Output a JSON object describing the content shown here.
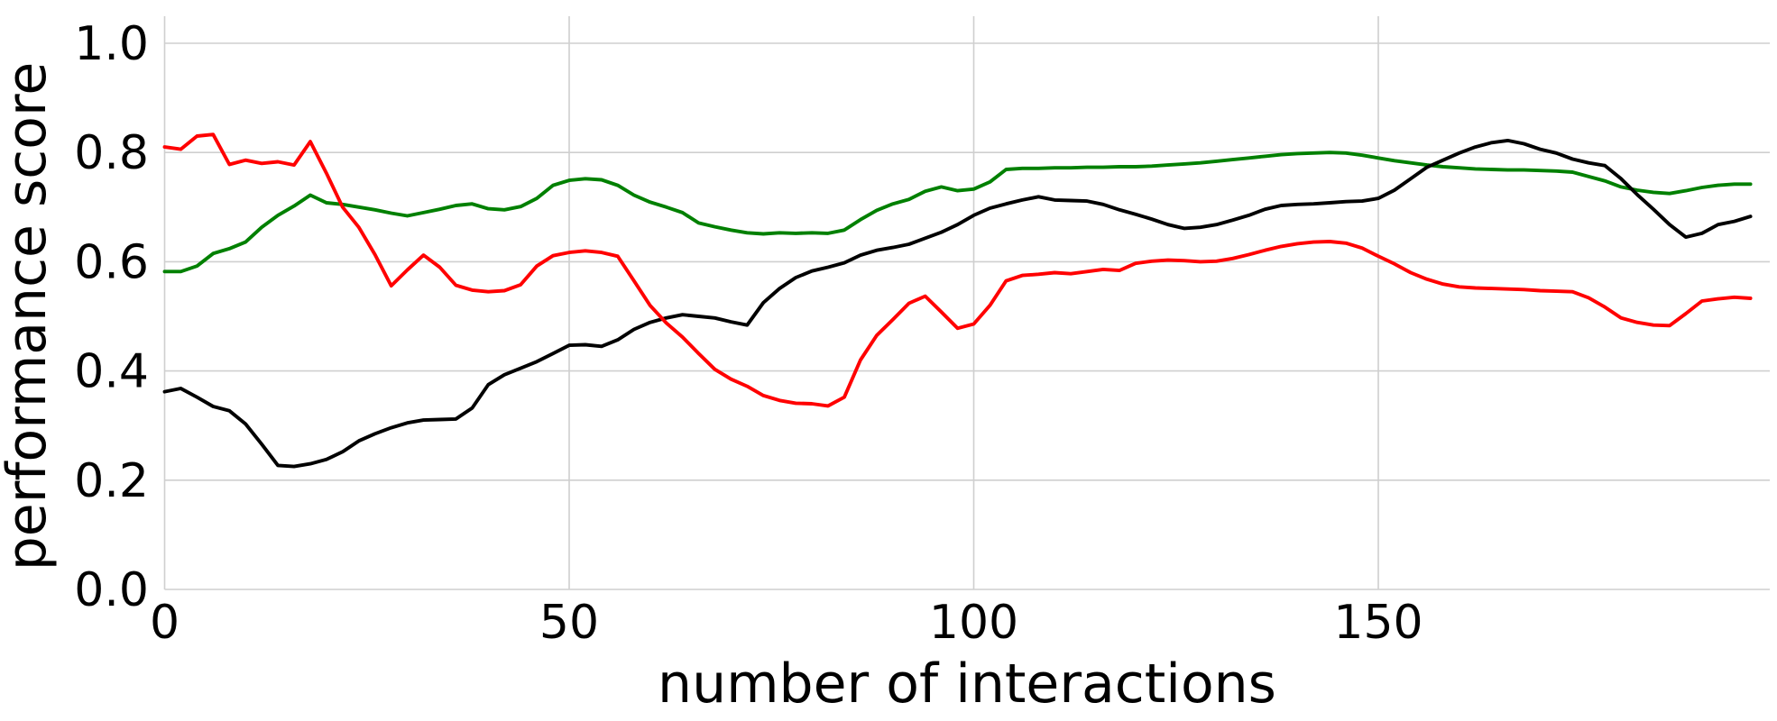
{
  "chart_data": {
    "type": "line",
    "title": "",
    "xlabel": "number of interactions",
    "ylabel": "performance score",
    "x_ticks": [
      0,
      50,
      100,
      150
    ],
    "x_tick_labels": [
      "0",
      "50",
      "100",
      "150"
    ],
    "y_ticks": [
      0.0,
      0.2,
      0.4,
      0.6,
      0.8,
      1.0
    ],
    "y_tick_labels": [
      "0.0",
      "0.2",
      "0.4",
      "0.6",
      "0.8",
      "1.0"
    ],
    "xlim": [
      0,
      198
    ],
    "ylim": [
      0,
      1.05
    ],
    "grid": true,
    "legend_position": "none",
    "x": [
      0,
      2,
      4,
      6,
      8,
      10,
      12,
      14,
      16,
      18,
      20,
      22,
      24,
      26,
      28,
      30,
      32,
      34,
      36,
      38,
      40,
      42,
      44,
      46,
      48,
      50,
      52,
      54,
      56,
      58,
      60,
      62,
      64,
      66,
      68,
      70,
      72,
      74,
      76,
      78,
      80,
      82,
      84,
      86,
      88,
      90,
      92,
      94,
      96,
      98,
      100,
      102,
      104,
      106,
      108,
      110,
      112,
      114,
      116,
      118,
      120,
      122,
      124,
      126,
      128,
      130,
      132,
      134,
      136,
      138,
      140,
      142,
      144,
      146,
      148,
      150,
      152,
      154,
      156,
      158,
      160,
      162,
      164,
      166,
      168,
      170,
      172,
      174,
      176,
      178,
      180,
      182,
      184,
      186,
      188,
      190,
      192,
      194,
      196
    ],
    "series": [
      {
        "name": "green",
        "color": "#008000",
        "values": [
          0.582,
          0.582,
          0.592,
          0.615,
          0.624,
          0.636,
          0.663,
          0.685,
          0.702,
          0.722,
          0.708,
          0.705,
          0.7,
          0.695,
          0.689,
          0.684,
          0.69,
          0.696,
          0.703,
          0.706,
          0.697,
          0.695,
          0.701,
          0.716,
          0.74,
          0.749,
          0.752,
          0.75,
          0.74,
          0.722,
          0.709,
          0.7,
          0.69,
          0.671,
          0.664,
          0.658,
          0.653,
          0.651,
          0.653,
          0.652,
          0.653,
          0.652,
          0.658,
          0.677,
          0.694,
          0.706,
          0.714,
          0.729,
          0.737,
          0.73,
          0.733,
          0.746,
          0.769,
          0.771,
          0.771,
          0.772,
          0.772,
          0.773,
          0.773,
          0.774,
          0.774,
          0.775,
          0.777,
          0.779,
          0.781,
          0.784,
          0.787,
          0.79,
          0.793,
          0.796,
          0.798,
          0.799,
          0.8,
          0.799,
          0.795,
          0.79,
          0.785,
          0.781,
          0.777,
          0.774,
          0.772,
          0.77,
          0.769,
          0.768,
          0.768,
          0.767,
          0.766,
          0.764,
          0.756,
          0.748,
          0.737,
          0.731,
          0.727,
          0.725,
          0.73,
          0.736,
          0.74,
          0.742,
          0.742
        ]
      },
      {
        "name": "black",
        "color": "#000000",
        "values": [
          0.362,
          0.368,
          0.352,
          0.335,
          0.327,
          0.303,
          0.266,
          0.227,
          0.225,
          0.23,
          0.238,
          0.252,
          0.272,
          0.285,
          0.296,
          0.305,
          0.31,
          0.311,
          0.312,
          0.332,
          0.375,
          0.393,
          0.405,
          0.417,
          0.432,
          0.447,
          0.448,
          0.445,
          0.457,
          0.476,
          0.489,
          0.497,
          0.503,
          0.5,
          0.497,
          0.49,
          0.484,
          0.525,
          0.551,
          0.571,
          0.583,
          0.59,
          0.598,
          0.612,
          0.621,
          0.626,
          0.632,
          0.643,
          0.654,
          0.668,
          0.685,
          0.698,
          0.706,
          0.713,
          0.719,
          0.713,
          0.712,
          0.711,
          0.705,
          0.695,
          0.687,
          0.678,
          0.668,
          0.661,
          0.663,
          0.668,
          0.676,
          0.685,
          0.696,
          0.703,
          0.705,
          0.706,
          0.708,
          0.71,
          0.711,
          0.716,
          0.731,
          0.752,
          0.773,
          0.786,
          0.799,
          0.81,
          0.818,
          0.822,
          0.816,
          0.806,
          0.799,
          0.788,
          0.781,
          0.776,
          0.752,
          0.723,
          0.696,
          0.668,
          0.645,
          0.652,
          0.668,
          0.674,
          0.683
        ]
      },
      {
        "name": "red",
        "color": "#ff0000",
        "values": [
          0.81,
          0.806,
          0.83,
          0.833,
          0.778,
          0.786,
          0.78,
          0.783,
          0.777,
          0.82,
          0.762,
          0.7,
          0.663,
          0.613,
          0.556,
          0.585,
          0.612,
          0.59,
          0.557,
          0.548,
          0.545,
          0.547,
          0.558,
          0.592,
          0.611,
          0.617,
          0.62,
          0.617,
          0.61,
          0.565,
          0.52,
          0.488,
          0.462,
          0.432,
          0.403,
          0.385,
          0.372,
          0.355,
          0.346,
          0.341,
          0.34,
          0.336,
          0.352,
          0.42,
          0.465,
          0.494,
          0.524,
          0.537,
          0.508,
          0.478,
          0.486,
          0.52,
          0.565,
          0.575,
          0.577,
          0.58,
          0.578,
          0.582,
          0.586,
          0.584,
          0.597,
          0.601,
          0.603,
          0.602,
          0.6,
          0.601,
          0.606,
          0.613,
          0.621,
          0.628,
          0.633,
          0.636,
          0.637,
          0.634,
          0.625,
          0.61,
          0.596,
          0.58,
          0.568,
          0.559,
          0.554,
          0.552,
          0.551,
          0.55,
          0.549,
          0.547,
          0.546,
          0.545,
          0.534,
          0.517,
          0.497,
          0.489,
          0.484,
          0.483,
          0.505,
          0.528,
          0.532,
          0.535,
          0.533
        ]
      }
    ]
  }
}
